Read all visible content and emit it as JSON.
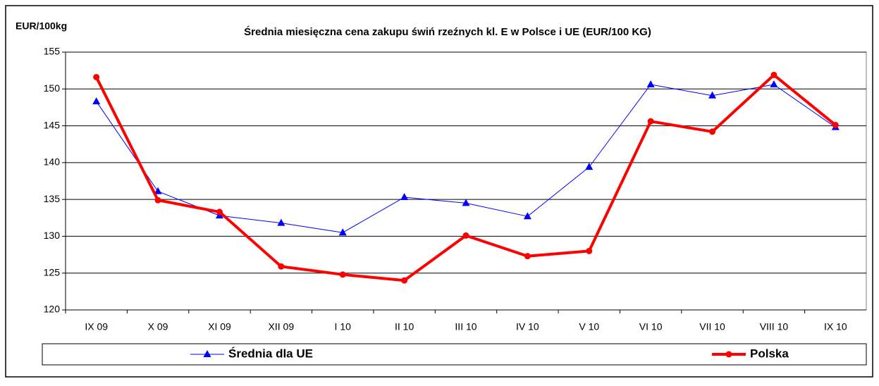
{
  "chart_data": {
    "type": "line",
    "title": "Średnia miesięczna cena zakupu świń rzeźnych kl. E w  Polsce i UE (EUR/100 KG)",
    "y_label": "EUR/100kg",
    "categories": [
      "IX 09",
      "X 09",
      "XI 09",
      "XII 09",
      "I 10",
      "II 10",
      "III 10",
      "IV 10",
      "V 10",
      "VI 10",
      "VII 10",
      "VIII 10",
      "IX 10"
    ],
    "series": [
      {
        "name": "Średnia dla  UE",
        "color": "#0000ff",
        "marker": "triangle",
        "line_width": 1,
        "values": [
          148.3,
          136.1,
          132.8,
          131.8,
          130.5,
          135.3,
          134.5,
          132.7,
          139.4,
          150.6,
          149.1,
          150.6,
          144.8
        ]
      },
      {
        "name": "Polska",
        "color": "#ff0000",
        "marker": "circle",
        "line_width": 4,
        "values": [
          151.6,
          134.9,
          133.3,
          125.9,
          124.8,
          124.0,
          130.1,
          127.3,
          128.0,
          145.6,
          144.2,
          151.9,
          145.1
        ]
      }
    ],
    "ylim": [
      120,
      155
    ],
    "yticks": [
      120,
      125,
      130,
      135,
      140,
      145,
      150,
      155
    ],
    "grid": true,
    "legend": "bottom"
  }
}
